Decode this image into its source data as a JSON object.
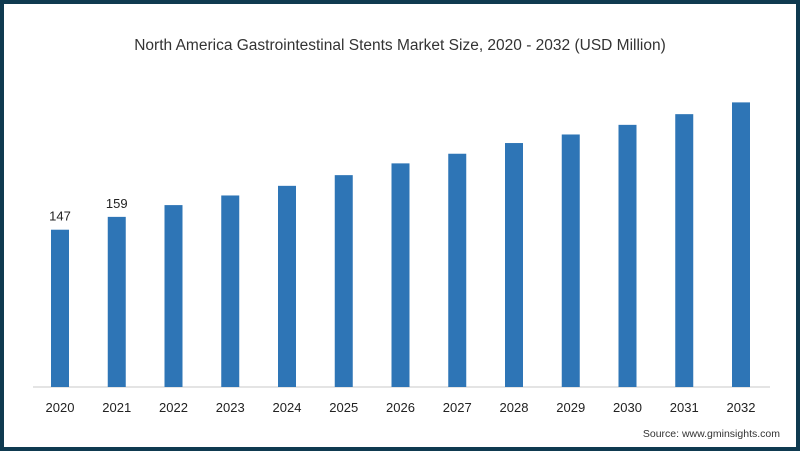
{
  "chart_data": {
    "type": "bar",
    "title": "North America Gastrointestinal Stents Market Size, 2020 - 2032 (USD Million)",
    "xlabel": "",
    "ylabel": "",
    "categories": [
      "2020",
      "2021",
      "2022",
      "2023",
      "2024",
      "2025",
      "2026",
      "2027",
      "2028",
      "2029",
      "2030",
      "2031",
      "2032"
    ],
    "values": [
      147,
      159,
      170,
      179,
      188,
      198,
      209,
      218,
      228,
      236,
      245,
      255,
      266
    ],
    "data_labels": {
      "2020": "147",
      "2021": "159"
    },
    "ylim": [
      0,
      330
    ],
    "grid": false,
    "bar_color": "#2e75b6",
    "source": "Source: www.gminsights.com"
  }
}
